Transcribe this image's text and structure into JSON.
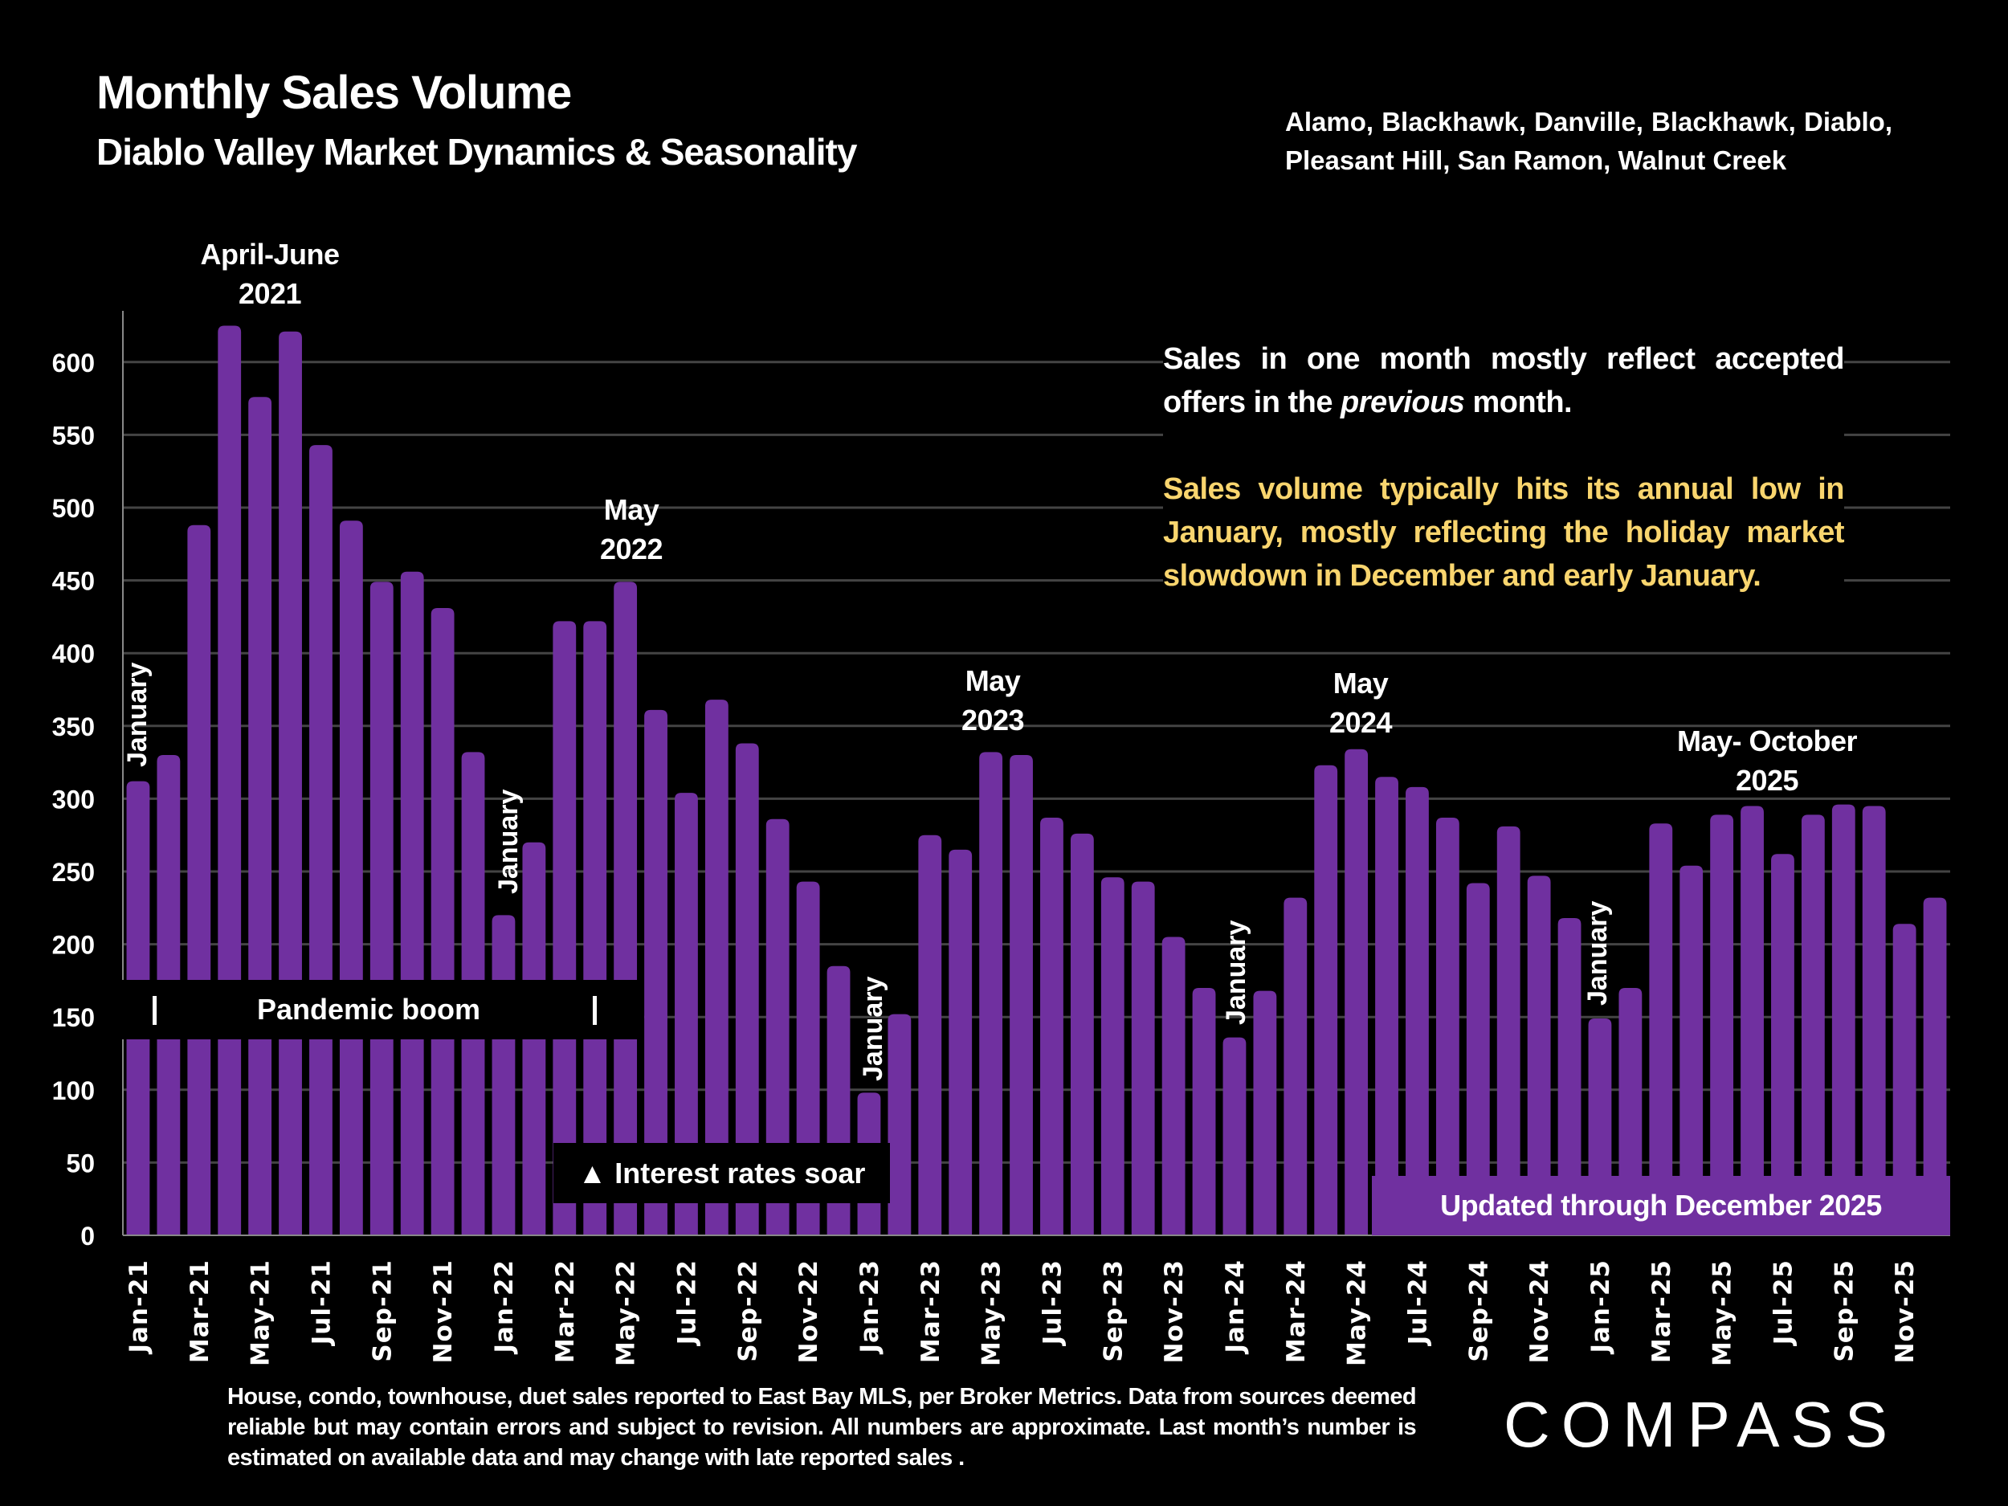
{
  "header": {
    "title": "Monthly Sales Volume",
    "subtitle": "Diablo Valley Market Dynamics & Seasonality",
    "areas": "Alamo, Blackhawk, Danville, Blackhawk, Diablo, Pleasant Hill, San Ramon, Walnut Creek"
  },
  "notes": {
    "line1_a": "Sales in one month mostly reflect accepted offers in the ",
    "line1_em": "previous",
    "line1_b": " month.",
    "line2": "Sales volume typically hits its annual low in January, mostly reflecting the holiday market slowdown in December and early January.",
    "gold_color": "#F9D56E"
  },
  "annotations": {
    "peak_2021": [
      "April-June",
      "2021"
    ],
    "peak_2022": [
      "May",
      "2022"
    ],
    "peak_2023": [
      "May",
      "2023"
    ],
    "peak_2024": [
      "May",
      "2024"
    ],
    "peak_2025": [
      "May- October",
      "2025"
    ],
    "january": "January",
    "pandemic": "Pandemic boom",
    "rates": "▲ Interest rates soar",
    "updated": "Updated through December 2025"
  },
  "footer": "House, condo, townhouse, duet sales reported to East Bay MLS, per Broker Metrics. Data from sources deemed reliable but may contain errors and subject to revision. All numbers are approximate. Last month’s number is estimated on available data and may change with late reported sales .",
  "logo": "COMPASS",
  "chart_data": {
    "type": "bar",
    "title": "Monthly Sales Volume",
    "xlabel": "",
    "ylabel": "",
    "ylim": [
      0,
      630
    ],
    "yticks": [
      0,
      50,
      100,
      150,
      200,
      250,
      300,
      350,
      400,
      450,
      500,
      550,
      600
    ],
    "grid": true,
    "bar_color": "#7030A0",
    "categories": [
      "Jan-21",
      "Feb-21",
      "Mar-21",
      "Apr-21",
      "May-21",
      "Jun-21",
      "Jul-21",
      "Aug-21",
      "Sep-21",
      "Oct-21",
      "Nov-21",
      "Dec-21",
      "Jan-22",
      "Feb-22",
      "Mar-22",
      "Apr-22",
      "May-22",
      "Jun-22",
      "Jul-22",
      "Aug-22",
      "Sep-22",
      "Oct-22",
      "Nov-22",
      "Dec-22",
      "Jan-23",
      "Feb-23",
      "Mar-23",
      "Apr-23",
      "May-23",
      "Jun-23",
      "Jul-23",
      "Aug-23",
      "Sep-23",
      "Oct-23",
      "Nov-23",
      "Dec-23",
      "Jan-24",
      "Feb-24",
      "Mar-24",
      "Apr-24",
      "May-24",
      "Jun-24",
      "Jul-24",
      "Aug-24",
      "Sep-24",
      "Oct-24",
      "Nov-24",
      "Dec-24",
      "Jan-25",
      "Feb-25",
      "Mar-25",
      "Apr-25",
      "May-25",
      "Jun-25",
      "Jul-25",
      "Aug-25",
      "Sep-25",
      "Oct-25",
      "Nov-25",
      "Dec-25"
    ],
    "shown_tick_labels": [
      "Jan-21",
      "Mar-21",
      "May-21",
      "Jul-21",
      "Sep-21",
      "Nov-21",
      "Jan-22",
      "Mar-22",
      "May-22",
      "Jul-22",
      "Sep-22",
      "Nov-22",
      "Jan-23",
      "Mar-23",
      "May-23",
      "Jul-23",
      "Sep-23",
      "Nov-23",
      "Jan-24",
      "Mar-24",
      "May-24",
      "Jul-24",
      "Sep-24",
      "Nov-24",
      "Jan-25",
      "Mar-25",
      "May-25",
      "Jul-25",
      "Sep-25",
      "Nov-25"
    ],
    "values": [
      312,
      330,
      488,
      625,
      576,
      621,
      543,
      491,
      449,
      456,
      431,
      332,
      220,
      270,
      422,
      422,
      449,
      361,
      304,
      368,
      338,
      286,
      243,
      185,
      98,
      152,
      275,
      265,
      332,
      330,
      287,
      276,
      246,
      243,
      205,
      170,
      136,
      168,
      232,
      323,
      334,
      315,
      308,
      287,
      242,
      281,
      247,
      218,
      149,
      170,
      283,
      254,
      289,
      295,
      262,
      289,
      296,
      295,
      214,
      232
    ]
  }
}
